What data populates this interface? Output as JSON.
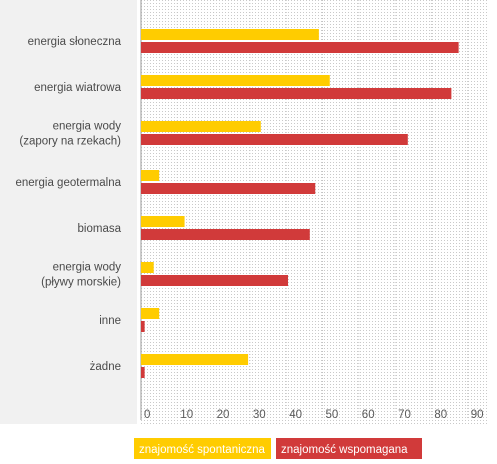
{
  "chart_data": {
    "type": "bar",
    "orientation": "horizontal",
    "categories": [
      [
        "energia słoneczna"
      ],
      [
        "energia wiatrowa"
      ],
      [
        "energia wody",
        "(zapory na rzekach)"
      ],
      [
        "energia geotermalna"
      ],
      [
        "biomasa"
      ],
      [
        "energia wody",
        "(pływy morskie)"
      ],
      [
        "inne"
      ],
      [
        "żadne"
      ]
    ],
    "series": [
      {
        "name": "znajomość spontaniczna",
        "color": "#ffcc00",
        "values": [
          49,
          52,
          33,
          5,
          12,
          3.5,
          5,
          29.5
        ]
      },
      {
        "name": "znajomość wspomagana",
        "color": "#d13a3a",
        "values": [
          87.5,
          85.5,
          73.5,
          48,
          46.5,
          40.5,
          1,
          1
        ]
      }
    ],
    "xlim": [
      0,
      97
    ],
    "xticks": [
      0,
      10,
      20,
      30,
      40,
      50,
      60,
      70,
      80,
      90
    ],
    "grid": true,
    "legend_position": "bottom-right",
    "category_panel_color": "#f1f1f1"
  }
}
